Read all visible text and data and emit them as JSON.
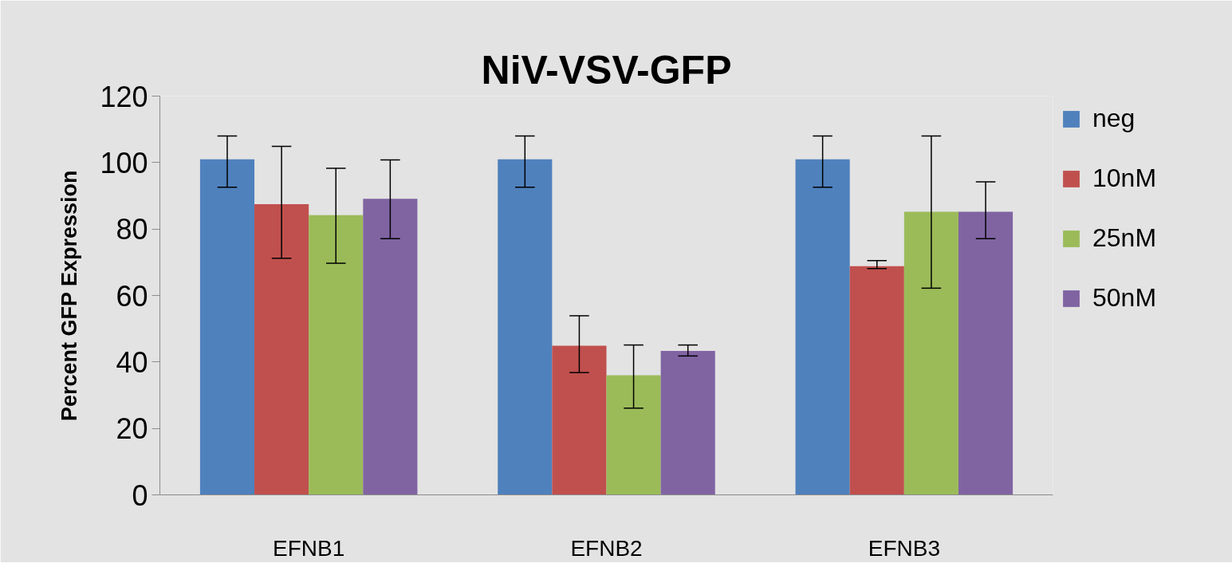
{
  "chart_data": {
    "type": "bar",
    "title": "NiV-VSV-GFP",
    "ylabel": "Percent GFP Expression",
    "categories": [
      "EFNB1",
      "EFNB2",
      "EFNB3"
    ],
    "series": [
      {
        "name": "neg",
        "color": "#4f81bd",
        "values": [
          101,
          101,
          101
        ],
        "errors": [
          [
            92.6,
            108
          ],
          [
            92.6,
            108
          ],
          [
            92.6,
            108
          ]
        ]
      },
      {
        "name": "10nM",
        "color": "#c0504d",
        "values": [
          87.5,
          44.9,
          68.8
        ],
        "errors": [
          [
            71.2,
            104.9
          ],
          [
            36.8,
            53.9
          ],
          [
            68.1,
            70.5
          ]
        ]
      },
      {
        "name": "25nM",
        "color": "#9bbb59",
        "values": [
          84.2,
          36,
          85.2
        ],
        "errors": [
          [
            69.7,
            98.3
          ],
          [
            26.1,
            45.1
          ],
          [
            62.2,
            108
          ]
        ]
      },
      {
        "name": "50nM",
        "color": "#8064a2",
        "values": [
          89.1,
          43.3,
          85.2
        ],
        "errors": [
          [
            77.1,
            100.8
          ],
          [
            41.8,
            45.1
          ],
          [
            77.1,
            94.2
          ]
        ]
      }
    ],
    "ylim": [
      0,
      120
    ],
    "yticks": [
      0,
      20,
      40,
      60,
      80,
      100,
      120
    ],
    "legend": "right"
  }
}
